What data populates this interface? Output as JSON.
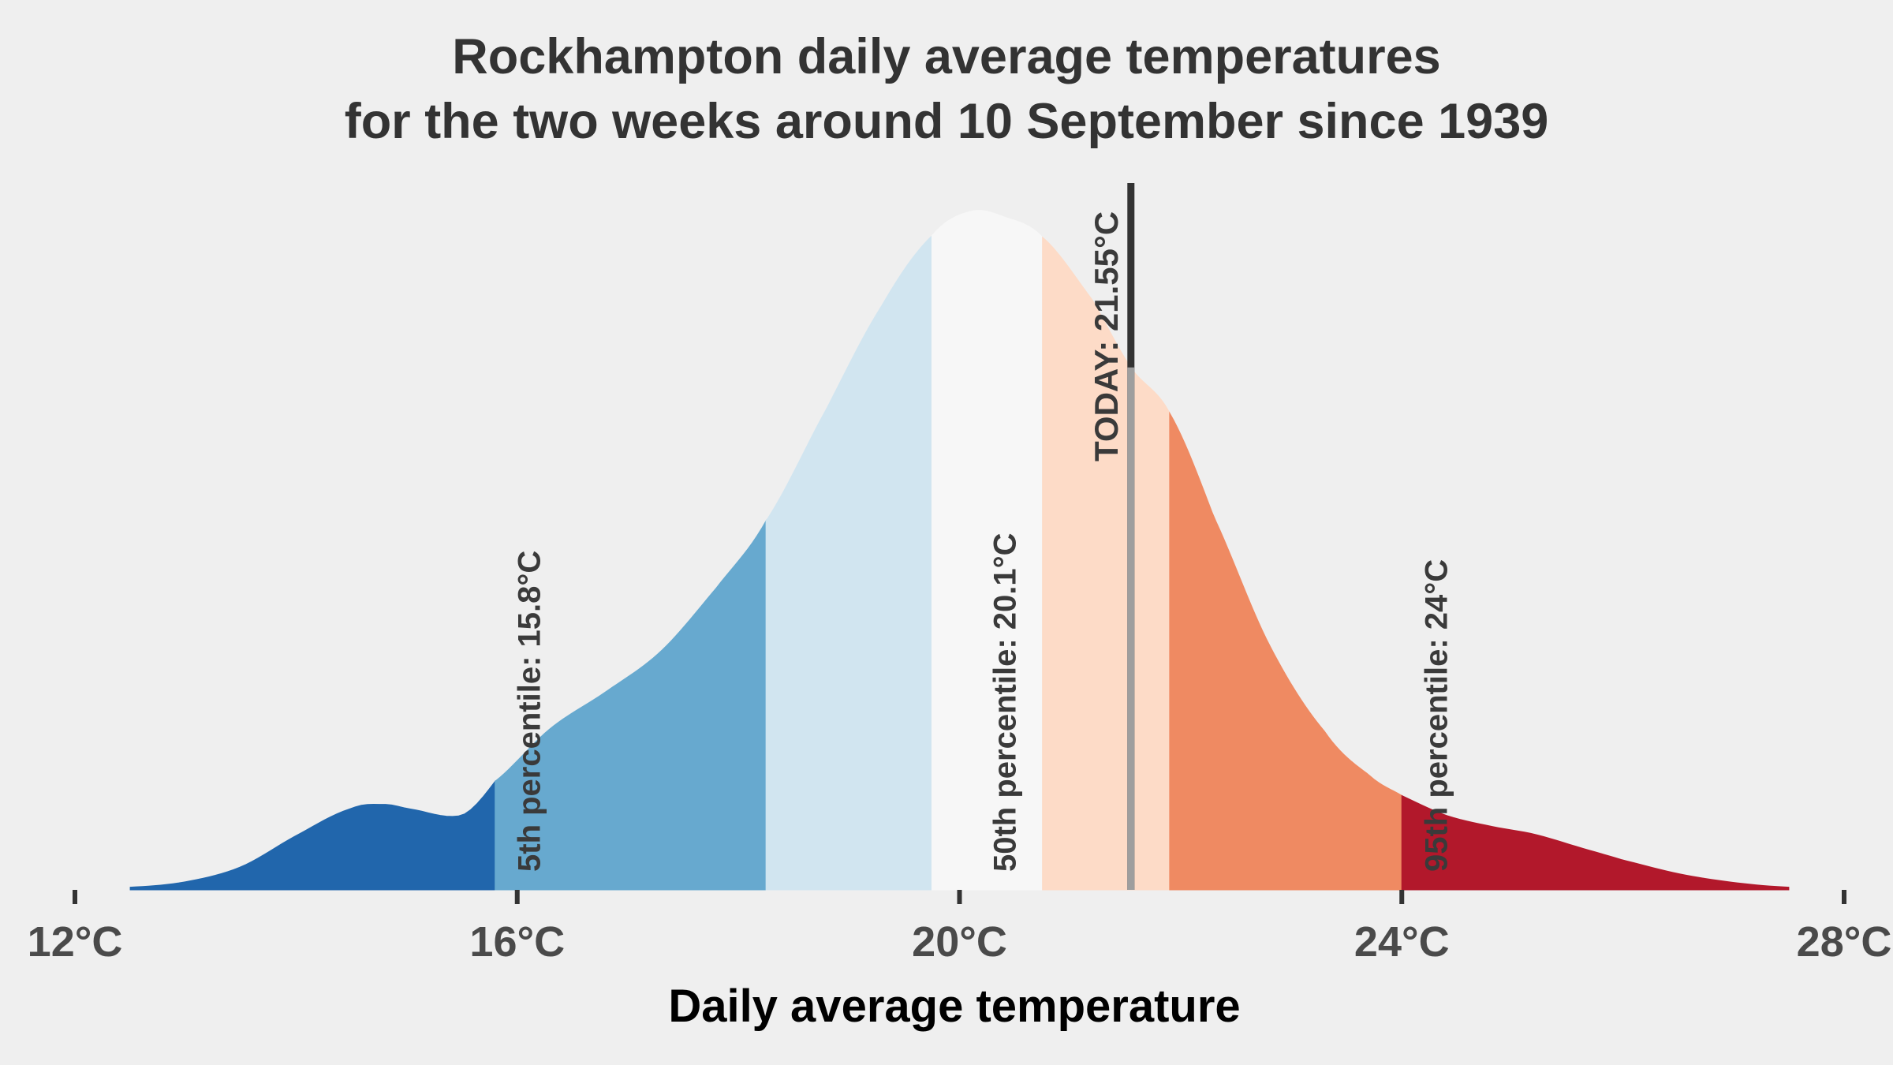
{
  "chart_data": {
    "type": "area",
    "title": "Rockhampton daily average temperatures",
    "subtitle": "for the two weeks around 10 September since 1939",
    "xlabel": "Daily average temperature",
    "ylabel": "",
    "xlim": [
      12,
      28
    ],
    "x_ticks": [
      12,
      16,
      20,
      24,
      28
    ],
    "x_tick_labels": [
      "12°C",
      "16°C",
      "20°C",
      "24°C",
      "28°C"
    ],
    "grid": false,
    "legend": "none",
    "density_curve": {
      "x": [
        12.5,
        13.0,
        13.5,
        14.0,
        14.5,
        14.8,
        15.0,
        15.5,
        15.8,
        16.3,
        16.8,
        17.3,
        17.8,
        18.25,
        18.8,
        19.3,
        19.75,
        20.1,
        20.4,
        20.75,
        21.2,
        21.55,
        21.9,
        22.3,
        22.8,
        23.3,
        23.7,
        24.0,
        24.4,
        24.8,
        25.2,
        25.6,
        26.0,
        26.5,
        27.0,
        27.5
      ],
      "density": [
        0.004,
        0.012,
        0.034,
        0.08,
        0.12,
        0.126,
        0.12,
        0.11,
        0.16,
        0.238,
        0.292,
        0.352,
        0.445,
        0.544,
        0.71,
        0.862,
        0.964,
        1.0,
        0.992,
        0.962,
        0.87,
        0.77,
        0.703,
        0.55,
        0.362,
        0.234,
        0.17,
        0.139,
        0.11,
        0.094,
        0.082,
        0.063,
        0.044,
        0.024,
        0.011,
        0.004
      ]
    },
    "bands": [
      {
        "from": 12.5,
        "to": 15.8,
        "color": "#2166ac"
      },
      {
        "from": 15.8,
        "to": 18.25,
        "color": "#67a9cf"
      },
      {
        "from": 18.25,
        "to": 19.75,
        "color": "#d1e5f0"
      },
      {
        "from": 19.75,
        "to": 20.75,
        "color": "#f7f7f7"
      },
      {
        "from": 20.75,
        "to": 21.9,
        "color": "#fddbc7"
      },
      {
        "from": 21.9,
        "to": 24.0,
        "color": "#ef8a62"
      },
      {
        "from": 24.0,
        "to": 27.5,
        "color": "#b2182b"
      }
    ],
    "percentiles": [
      {
        "label": "5th percentile:  15.8°C",
        "x": 15.8
      },
      {
        "label": "50th percentile: 20.1°C",
        "x": 20.1
      },
      {
        "label": "95th percentile:  24°C",
        "x": 24.0
      }
    ],
    "today": {
      "label": "TODAY:  21.55°C",
      "value": 21.55,
      "color": "#333333"
    }
  }
}
